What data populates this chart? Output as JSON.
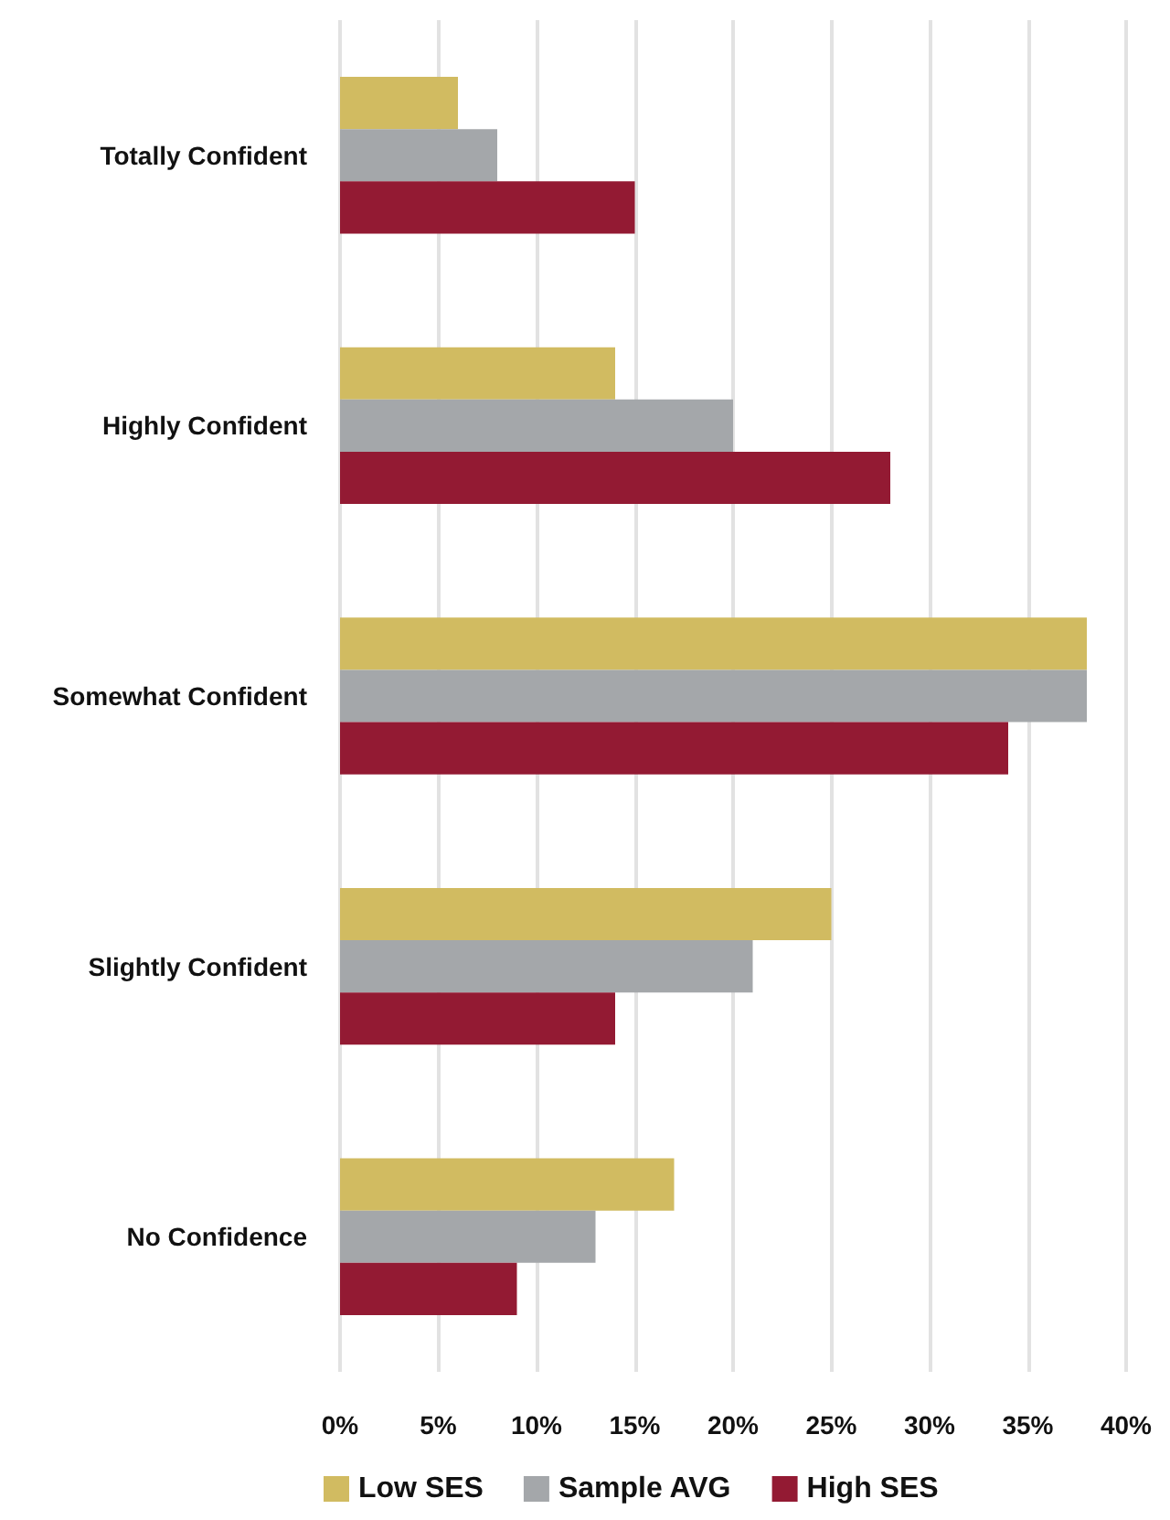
{
  "chart_data": {
    "type": "bar",
    "orientation": "horizontal",
    "categories": [
      "Totally Confident",
      "Highly Confident",
      "Somewhat Confident",
      "Slightly Confident",
      "No Confidence"
    ],
    "series": [
      {
        "name": "Low SES",
        "color": "#d1bb61",
        "values": [
          6,
          14,
          38,
          25,
          17
        ]
      },
      {
        "name": "Sample AVG",
        "color": "#a4a7aa",
        "values": [
          8,
          20,
          38,
          21,
          13
        ]
      },
      {
        "name": "High SES",
        "color": "#931a33",
        "values": [
          15,
          28,
          34,
          14,
          9
        ]
      }
    ],
    "xlim": [
      0,
      40
    ],
    "xticks": [
      {
        "value": 0,
        "label": "0%"
      },
      {
        "value": 5,
        "label": "5%"
      },
      {
        "value": 10,
        "label": "10%"
      },
      {
        "value": 15,
        "label": "15%"
      },
      {
        "value": 20,
        "label": "20%"
      },
      {
        "value": 25,
        "label": "25%"
      },
      {
        "value": 30,
        "label": "30%"
      },
      {
        "value": 35,
        "label": "35%"
      },
      {
        "value": 40,
        "label": "40%"
      }
    ],
    "grid": "x",
    "legend": "bottom left"
  }
}
